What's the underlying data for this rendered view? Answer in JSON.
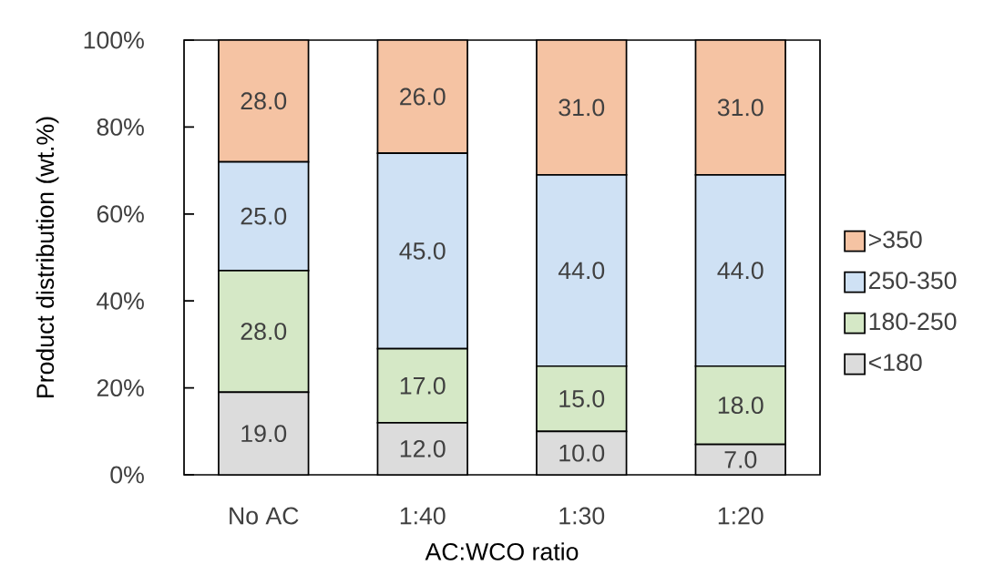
{
  "chart_data": {
    "type": "bar",
    "stacked": true,
    "xlabel": "AC:WCO ratio",
    "ylabel": "Product distribution (wt.%)",
    "categories": [
      "No AC",
      "1:40",
      "1:30",
      "1:20"
    ],
    "series": [
      {
        "name": "<180",
        "color": "#dcdcdc",
        "values": [
          19,
          12,
          10,
          7
        ],
        "value_labels": [
          "19.0",
          "12.0",
          "10.0",
          "7.0"
        ]
      },
      {
        "name": "180-250",
        "color": "#d5e8c6",
        "values": [
          28,
          17,
          15,
          18
        ],
        "value_labels": [
          "28.0",
          "17.0",
          "15.0",
          "18.0"
        ]
      },
      {
        "name": "250-350",
        "color": "#cfe1f4",
        "values": [
          25,
          45,
          44,
          44
        ],
        "value_labels": [
          "25.0",
          "45.0",
          "44.0",
          "44.0"
        ]
      },
      {
        "name": ">350",
        "color": "#f5c3a3",
        "values": [
          28,
          26,
          31,
          31
        ],
        "value_labels": [
          "28.0",
          "26.0",
          "31.0",
          "31.0"
        ]
      }
    ],
    "ylim": [
      0,
      100
    ],
    "yticks": [
      {
        "value": 0,
        "label": "0%"
      },
      {
        "value": 20,
        "label": "20%"
      },
      {
        "value": 40,
        "label": "40%"
      },
      {
        "value": 60,
        "label": "60%"
      },
      {
        "value": 80,
        "label": "80%"
      },
      {
        "value": 100,
        "label": "100%"
      }
    ],
    "legend": "right"
  }
}
